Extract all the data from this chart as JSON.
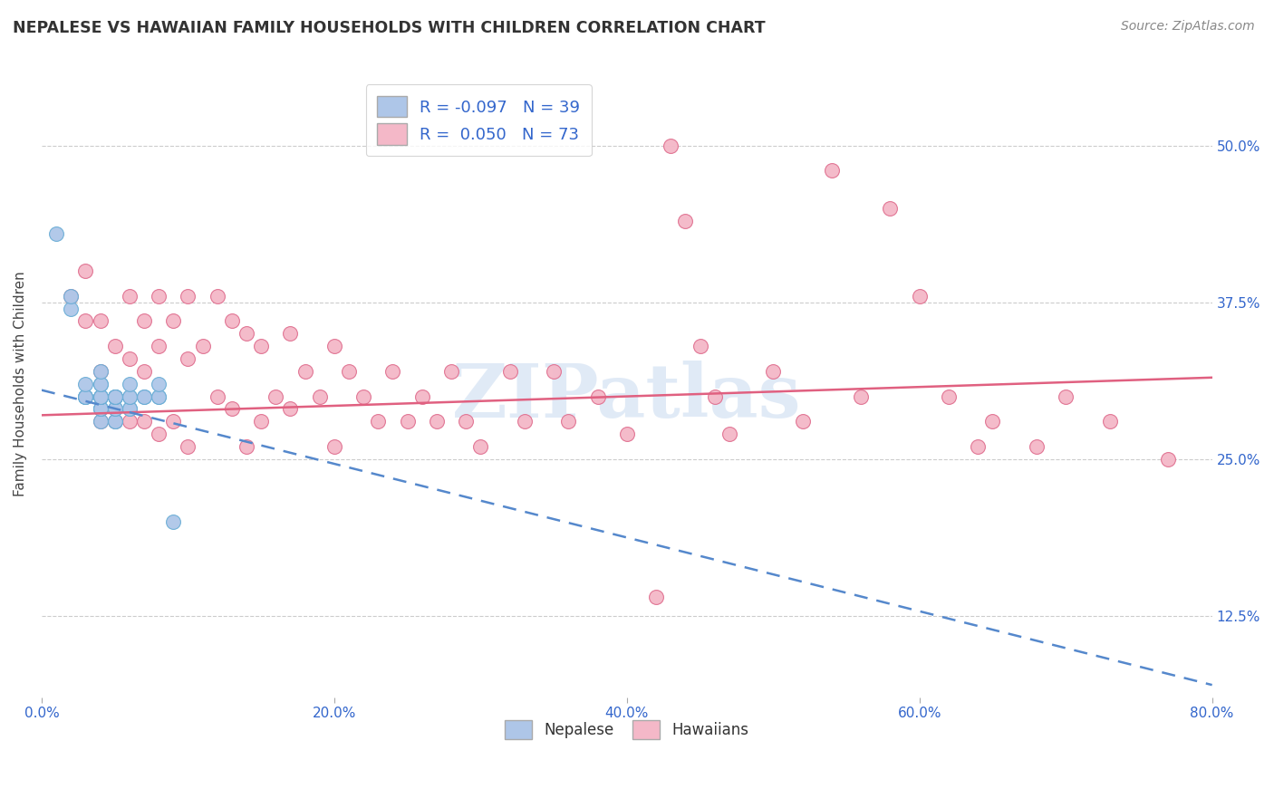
{
  "title": "NEPALESE VS HAWAIIAN FAMILY HOUSEHOLDS WITH CHILDREN CORRELATION CHART",
  "source": "Source: ZipAtlas.com",
  "ylabel": "Family Households with Children",
  "xlabel_ticks": [
    "0.0%",
    "20.0%",
    "40.0%",
    "60.0%",
    "80.0%"
  ],
  "ylabel_ticks": [
    "12.5%",
    "25.0%",
    "37.5%",
    "50.0%"
  ],
  "xlim": [
    0.0,
    0.8
  ],
  "ylim": [
    0.06,
    0.56
  ],
  "nepalese_color": "#aec6e8",
  "nepalese_edge": "#6baed6",
  "hawaiian_color": "#f4b8c8",
  "hawaiian_edge": "#e07090",
  "nepalese_R": -0.097,
  "nepalese_N": 39,
  "hawaiian_R": 0.05,
  "hawaiian_N": 73,
  "line_nepalese_color": "#5588cc",
  "line_hawaiian_color": "#e06080",
  "watermark": "ZIPatlas",
  "nepalese_x": [
    0.01,
    0.02,
    0.02,
    0.03,
    0.03,
    0.03,
    0.03,
    0.03,
    0.04,
    0.04,
    0.04,
    0.04,
    0.04,
    0.04,
    0.04,
    0.04,
    0.04,
    0.04,
    0.04,
    0.05,
    0.05,
    0.05,
    0.05,
    0.05,
    0.05,
    0.05,
    0.05,
    0.05,
    0.06,
    0.06,
    0.06,
    0.06,
    0.06,
    0.07,
    0.07,
    0.08,
    0.08,
    0.08,
    0.09
  ],
  "nepalese_y": [
    0.43,
    0.37,
    0.38,
    0.3,
    0.3,
    0.3,
    0.3,
    0.31,
    0.28,
    0.29,
    0.29,
    0.29,
    0.3,
    0.3,
    0.3,
    0.3,
    0.31,
    0.31,
    0.32,
    0.28,
    0.28,
    0.29,
    0.29,
    0.3,
    0.3,
    0.3,
    0.3,
    0.3,
    0.29,
    0.29,
    0.3,
    0.3,
    0.31,
    0.3,
    0.3,
    0.3,
    0.3,
    0.31,
    0.2
  ],
  "hawaiian_x": [
    0.02,
    0.03,
    0.03,
    0.04,
    0.04,
    0.04,
    0.05,
    0.05,
    0.06,
    0.06,
    0.06,
    0.07,
    0.07,
    0.07,
    0.08,
    0.08,
    0.08,
    0.09,
    0.09,
    0.1,
    0.1,
    0.1,
    0.11,
    0.12,
    0.12,
    0.13,
    0.13,
    0.14,
    0.14,
    0.15,
    0.15,
    0.16,
    0.17,
    0.17,
    0.18,
    0.19,
    0.2,
    0.2,
    0.21,
    0.22,
    0.23,
    0.24,
    0.25,
    0.26,
    0.27,
    0.28,
    0.29,
    0.3,
    0.32,
    0.33,
    0.35,
    0.36,
    0.38,
    0.4,
    0.42,
    0.43,
    0.44,
    0.45,
    0.46,
    0.47,
    0.5,
    0.52,
    0.54,
    0.56,
    0.58,
    0.6,
    0.62,
    0.64,
    0.65,
    0.68,
    0.7,
    0.73,
    0.77
  ],
  "hawaiian_y": [
    0.38,
    0.4,
    0.36,
    0.36,
    0.32,
    0.28,
    0.34,
    0.28,
    0.38,
    0.33,
    0.28,
    0.36,
    0.32,
    0.28,
    0.38,
    0.34,
    0.27,
    0.36,
    0.28,
    0.38,
    0.33,
    0.26,
    0.34,
    0.38,
    0.3,
    0.36,
    0.29,
    0.35,
    0.26,
    0.34,
    0.28,
    0.3,
    0.35,
    0.29,
    0.32,
    0.3,
    0.34,
    0.26,
    0.32,
    0.3,
    0.28,
    0.32,
    0.28,
    0.3,
    0.28,
    0.32,
    0.28,
    0.26,
    0.32,
    0.28,
    0.32,
    0.28,
    0.3,
    0.27,
    0.14,
    0.5,
    0.44,
    0.34,
    0.3,
    0.27,
    0.32,
    0.28,
    0.48,
    0.3,
    0.45,
    0.38,
    0.3,
    0.26,
    0.28,
    0.26,
    0.3,
    0.28,
    0.25
  ],
  "line_nep_x0": 0.0,
  "line_nep_y0": 0.305,
  "line_nep_x1": 0.8,
  "line_nep_y1": 0.07,
  "line_haw_x0": 0.0,
  "line_haw_y0": 0.285,
  "line_haw_x1": 0.8,
  "line_haw_y1": 0.315
}
